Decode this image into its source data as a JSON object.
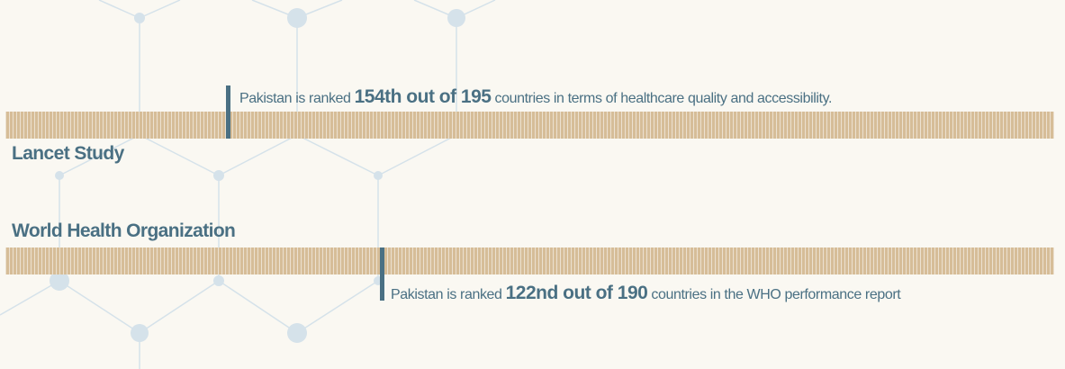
{
  "colors": {
    "accent": "#4a7083",
    "bar": "#d6bd98",
    "background": "#faf8f2"
  },
  "entries": [
    {
      "label": "Lancet Study",
      "prefix": "Pakistan is ranked",
      "rank": "154th out of 195",
      "suffix": "countries in terms of healthcare quality and accessibility."
    },
    {
      "label": "World Health Organization",
      "prefix": "Pakistan is ranked",
      "rank": "122nd out of 190",
      "suffix": "countries in the WHO performance report"
    }
  ]
}
